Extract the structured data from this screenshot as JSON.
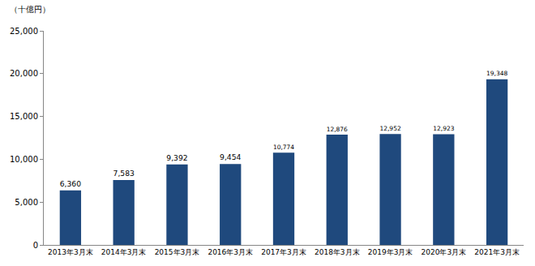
{
  "chart_data": {
    "type": "bar",
    "y_label": "（十億円）",
    "categories": [
      "2013年3月末",
      "2014年3月末",
      "2015年3月末",
      "2016年3月末",
      "2017年3月末",
      "2018年3月末",
      "2019年3月末",
      "2020年3月末",
      "2021年3月末"
    ],
    "values": [
      6360,
      7583,
      9392,
      9454,
      10774,
      12876,
      12952,
      12923,
      19348
    ],
    "value_labels": [
      "6,360",
      "7,583",
      "9,392",
      "9,454",
      "10,774",
      "12,876",
      "12,952",
      "12,923",
      "19,348"
    ],
    "data_labels": true,
    "color": "#1f497d",
    "ylim": [
      0,
      25000
    ],
    "yticks": [
      0,
      {
        "value": 5000,
        "label": "5,000"
      },
      {
        "value": 10000,
        "label": "10,000"
      },
      {
        "value": 15000,
        "label": "15,000"
      },
      {
        "value": 20000,
        "label": "20,000"
      },
      {
        "value": 25000,
        "label": "25,000"
      }
    ],
    "grid": false
  }
}
